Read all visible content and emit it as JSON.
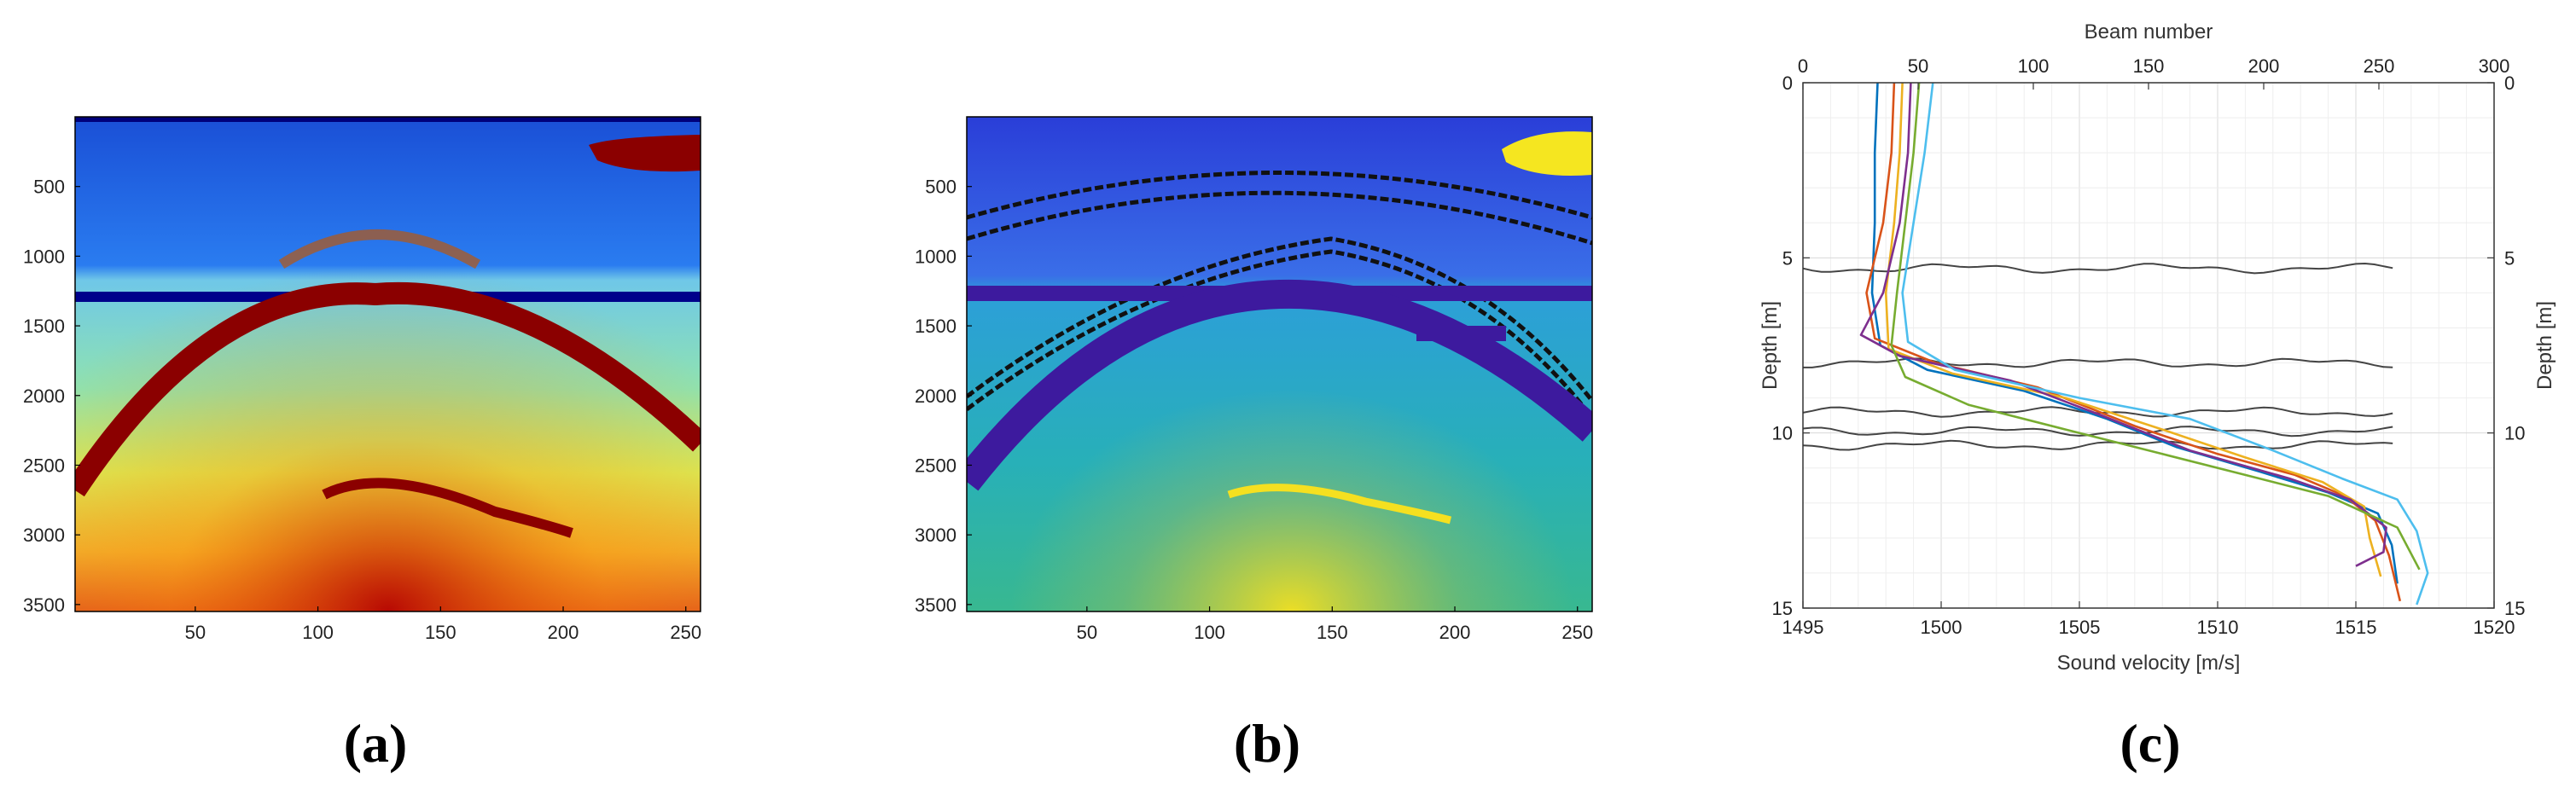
{
  "chart_data": [
    {
      "type": "heatmap",
      "caption": "(a)",
      "colormap": "jet",
      "y_reversed": true,
      "xlim": [
        1,
        256
      ],
      "ylim": [
        0,
        3550
      ],
      "xticks": [
        "50",
        "100",
        "150",
        "200",
        "250"
      ],
      "yticks": [
        "500",
        "1000",
        "1500",
        "2000",
        "2500",
        "3000",
        "3500"
      ],
      "xtick_values": [
        50,
        100,
        150,
        200,
        250
      ],
      "ytick_values": [
        500,
        1000,
        1500,
        2000,
        2500,
        3000,
        3500
      ]
    },
    {
      "type": "heatmap",
      "caption": "(b)",
      "colormap": "parula",
      "y_reversed": true,
      "xlim": [
        1,
        256
      ],
      "ylim": [
        0,
        3550
      ],
      "xticks": [
        "50",
        "100",
        "150",
        "200",
        "250"
      ],
      "yticks": [
        "500",
        "1000",
        "1500",
        "2000",
        "2500",
        "3000",
        "3500"
      ],
      "xtick_values": [
        50,
        100,
        150,
        200,
        250
      ],
      "ytick_values": [
        500,
        1000,
        1500,
        2000,
        2500,
        3000,
        3500
      ]
    },
    {
      "type": "line",
      "caption": "(c)",
      "xlabel_bottom": "Sound velocity [m/s]",
      "xlabel_top": "Beam number",
      "ylabel_left": "Depth [m]",
      "ylabel_right": "Depth [m]",
      "xlim_bottom": [
        1495,
        1520
      ],
      "xlim_top": [
        0,
        300
      ],
      "ylim": [
        0,
        15
      ],
      "y_reversed": true,
      "grid": true,
      "xticks_bottom": [
        "1495",
        "1500",
        "1505",
        "1510",
        "1515",
        "1520"
      ],
      "xticks_top": [
        "0",
        "50",
        "100",
        "150",
        "200",
        "250",
        "300"
      ],
      "yticks": [
        "0",
        "5",
        "10",
        "15"
      ],
      "velocity_profiles": [
        {
          "color": "#0072BD",
          "points": [
            [
              1497.7,
              0
            ],
            [
              1497.6,
              2
            ],
            [
              1497.6,
              4
            ],
            [
              1497.5,
              6
            ],
            [
              1497.8,
              7.5
            ],
            [
              1499.5,
              8.2
            ],
            [
              1503,
              8.8
            ],
            [
              1506,
              9.6
            ],
            [
              1508.5,
              10.4
            ],
            [
              1511.5,
              11.1
            ],
            [
              1514,
              11.7
            ],
            [
              1515.8,
              12.3
            ],
            [
              1516.3,
              13.2
            ],
            [
              1516.5,
              14.3
            ]
          ]
        },
        {
          "color": "#D95319",
          "points": [
            [
              1498.3,
              0
            ],
            [
              1498.2,
              2
            ],
            [
              1497.9,
              4
            ],
            [
              1497.3,
              6
            ],
            [
              1497.6,
              7.3
            ],
            [
              1499.8,
              8.0
            ],
            [
              1503.5,
              8.7
            ],
            [
              1507,
              9.8
            ],
            [
              1510,
              10.6
            ],
            [
              1512.8,
              11.2
            ],
            [
              1514.6,
              11.8
            ],
            [
              1515.7,
              12.5
            ],
            [
              1516.2,
              13.5
            ],
            [
              1516.6,
              14.8
            ]
          ]
        },
        {
          "color": "#EDB120",
          "points": [
            [
              1498.6,
              0
            ],
            [
              1498.5,
              2
            ],
            [
              1498.3,
              4
            ],
            [
              1498.0,
              6
            ],
            [
              1498.1,
              7.6
            ],
            [
              1500.4,
              8.3
            ],
            [
              1504.5,
              9.0
            ],
            [
              1508,
              9.9
            ],
            [
              1511,
              10.7
            ],
            [
              1513.8,
              11.4
            ],
            [
              1515.3,
              12.1
            ],
            [
              1515.5,
              13.0
            ],
            [
              1515.9,
              14.1
            ]
          ]
        },
        {
          "color": "#7E2F8E",
          "points": [
            [
              1498.9,
              0
            ],
            [
              1498.8,
              2
            ],
            [
              1498.5,
              4
            ],
            [
              1497.9,
              6
            ],
            [
              1497.1,
              7.2
            ],
            [
              1498.5,
              7.8
            ],
            [
              1502.5,
              8.5
            ],
            [
              1505.8,
              9.5
            ],
            [
              1509,
              10.5
            ],
            [
              1512.6,
              11.3
            ],
            [
              1514.8,
              11.9
            ],
            [
              1516.1,
              12.7
            ],
            [
              1516.0,
              13.4
            ],
            [
              1515.0,
              13.8
            ]
          ]
        },
        {
          "color": "#77AC30",
          "points": [
            [
              1499.2,
              0
            ],
            [
              1499.0,
              2
            ],
            [
              1498.7,
              4
            ],
            [
              1498.4,
              6
            ],
            [
              1498.2,
              7.5
            ],
            [
              1498.7,
              8.4
            ],
            [
              1501,
              9.2
            ],
            [
              1504.5,
              9.9
            ],
            [
              1508,
              10.6
            ],
            [
              1511,
              11.2
            ],
            [
              1514,
              11.8
            ],
            [
              1516.5,
              12.7
            ],
            [
              1517.3,
              13.9
            ]
          ]
        },
        {
          "color": "#4DBEEE",
          "points": [
            [
              1499.7,
              0
            ],
            [
              1499.4,
              2
            ],
            [
              1499.0,
              4
            ],
            [
              1498.6,
              6
            ],
            [
              1498.8,
              7.4
            ],
            [
              1500.5,
              8.2
            ],
            [
              1505,
              9.0
            ],
            [
              1509,
              9.6
            ],
            [
              1512,
              10.5
            ],
            [
              1514.5,
              11.3
            ],
            [
              1516.5,
              11.9
            ],
            [
              1517.2,
              12.8
            ],
            [
              1517.6,
              14.0
            ],
            [
              1517.2,
              14.9
            ]
          ]
        }
      ],
      "beam_lines": [
        {
          "color": "#444444",
          "depth": 5.3
        },
        {
          "color": "#444444",
          "depth": 8.0
        },
        {
          "color": "#444444",
          "depth": 9.4
        },
        {
          "color": "#444444",
          "depth": 9.95
        },
        {
          "color": "#444444",
          "depth": 10.35
        }
      ]
    }
  ]
}
